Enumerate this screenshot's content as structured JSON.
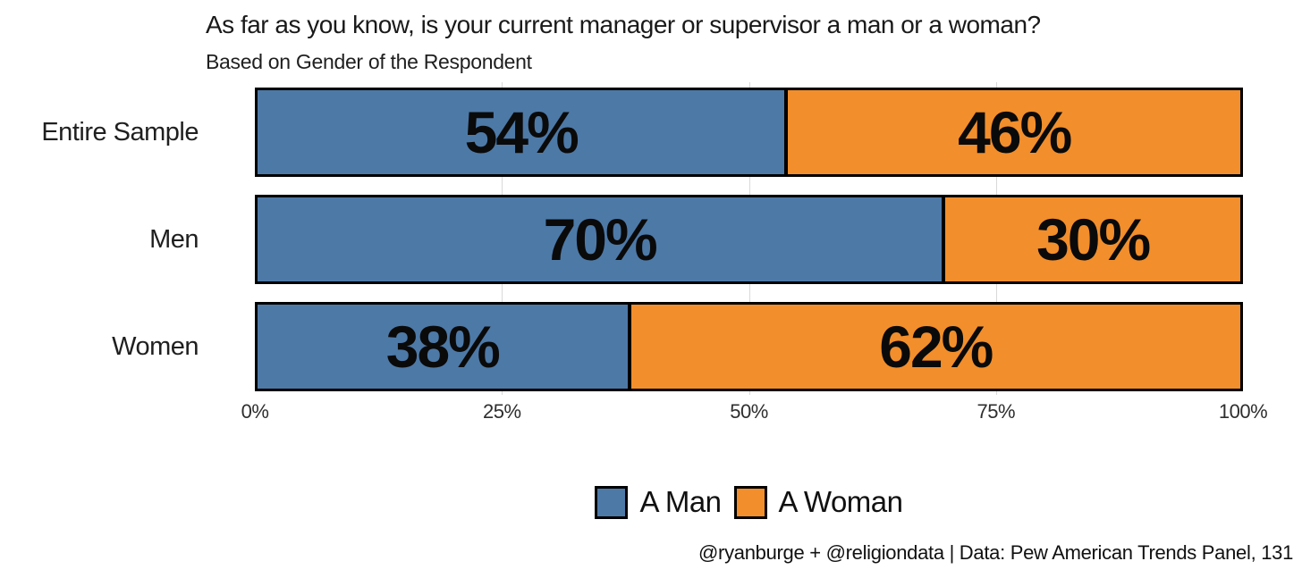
{
  "chart_data": {
    "type": "bar",
    "orientation": "horizontal",
    "stacked": true,
    "title": "As far as you know, is your current manager or supervisor a man or a woman?",
    "subtitle": "Based on Gender of the Respondent",
    "categories": [
      "Entire Sample",
      "Men",
      "Women"
    ],
    "series": [
      {
        "name": "A Man",
        "color": "#4d79a7",
        "values": [
          54,
          70,
          38
        ]
      },
      {
        "name": "A Woman",
        "color": "#f28e2b",
        "values": [
          46,
          30,
          62
        ]
      }
    ],
    "value_labels": [
      [
        "54%",
        "46%"
      ],
      [
        "70%",
        "30%"
      ],
      [
        "38%",
        "62%"
      ]
    ],
    "x_ticks": [
      "0%",
      "25%",
      "50%",
      "75%",
      "100%"
    ],
    "xlim": [
      0,
      100
    ],
    "grid": "light vertical gridlines at 25% intervals",
    "legend_position": "bottom-center",
    "caption": "@ryanburge + @religiondata | Data: Pew American Trends Panel, 131",
    "bar_border_color": "#000000",
    "background_color": "#ffffff"
  }
}
